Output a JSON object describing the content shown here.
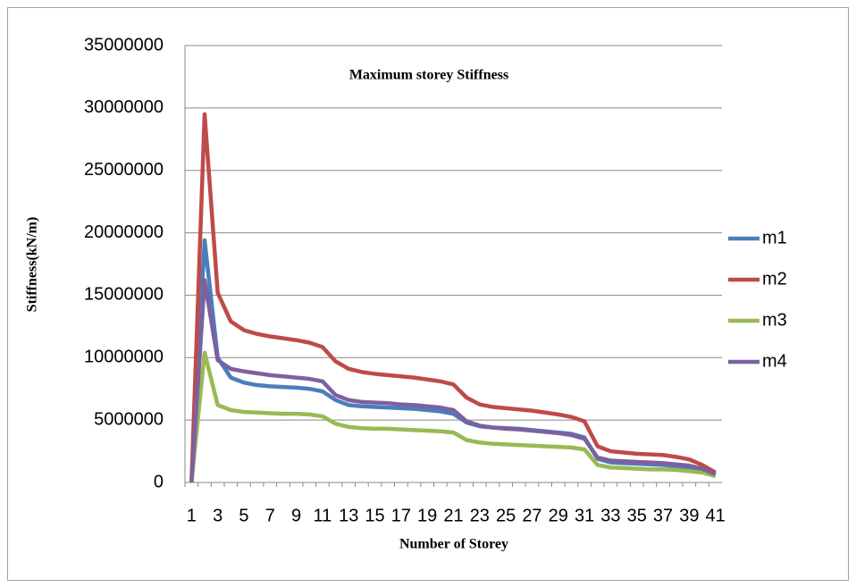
{
  "chart_data": {
    "type": "line",
    "title": "Maximum storey Stiffness",
    "x_label": "Number of Storey",
    "y_label": "Stiffness(kN/m)",
    "categories": [
      1,
      null,
      3,
      null,
      5,
      null,
      7,
      null,
      9,
      null,
      11,
      null,
      13,
      null,
      15,
      null,
      17,
      null,
      19,
      null,
      21,
      null,
      23,
      null,
      25,
      null,
      27,
      null,
      29,
      null,
      31,
      null,
      33,
      null,
      35,
      null,
      37,
      null,
      39,
      null,
      41
    ],
    "series": [
      {
        "name": "m1",
        "color": "#4a7ebb",
        "values": [
          0,
          19400000,
          10000000,
          8400000,
          8000000,
          7800000,
          7700000,
          7650000,
          7600000,
          7500000,
          7300000,
          6600000,
          6200000,
          6100000,
          6050000,
          6000000,
          5950000,
          5900000,
          5800000,
          5700000,
          5500000,
          4800000,
          4500000,
          4400000,
          4350000,
          4300000,
          4200000,
          4100000,
          4000000,
          3900000,
          3600000,
          1900000,
          1600000,
          1550000,
          1500000,
          1450000,
          1400000,
          1300000,
          1200000,
          1000000,
          600000
        ]
      },
      {
        "name": "m2",
        "color": "#be4b48",
        "values": [
          0,
          29500000,
          15200000,
          12900000,
          12200000,
          11900000,
          11700000,
          11550000,
          11400000,
          11200000,
          10850000,
          9700000,
          9100000,
          8850000,
          8700000,
          8600000,
          8500000,
          8400000,
          8250000,
          8100000,
          7850000,
          6800000,
          6250000,
          6050000,
          5950000,
          5850000,
          5750000,
          5600000,
          5450000,
          5250000,
          4900000,
          2900000,
          2500000,
          2400000,
          2300000,
          2250000,
          2200000,
          2050000,
          1850000,
          1400000,
          800000
        ]
      },
      {
        "name": "m3",
        "color": "#98b954",
        "values": [
          0,
          10400000,
          6200000,
          5800000,
          5650000,
          5600000,
          5550000,
          5500000,
          5500000,
          5450000,
          5300000,
          4700000,
          4450000,
          4350000,
          4300000,
          4300000,
          4250000,
          4200000,
          4150000,
          4100000,
          4000000,
          3400000,
          3200000,
          3100000,
          3050000,
          3000000,
          2950000,
          2900000,
          2850000,
          2800000,
          2650000,
          1400000,
          1200000,
          1150000,
          1100000,
          1050000,
          1050000,
          1000000,
          900000,
          800000,
          500000
        ]
      },
      {
        "name": "m4",
        "color": "#7d60a0",
        "values": [
          0,
          16200000,
          9800000,
          9100000,
          8900000,
          8750000,
          8600000,
          8500000,
          8400000,
          8300000,
          8100000,
          7000000,
          6600000,
          6450000,
          6400000,
          6350000,
          6250000,
          6200000,
          6100000,
          6000000,
          5800000,
          4900000,
          4550000,
          4400000,
          4300000,
          4250000,
          4150000,
          4050000,
          3950000,
          3800000,
          3500000,
          2000000,
          1750000,
          1700000,
          1650000,
          1600000,
          1550000,
          1450000,
          1350000,
          1100000,
          650000
        ]
      }
    ],
    "ylim": [
      0,
      35000000
    ],
    "yticks": [
      0,
      5000000,
      10000000,
      15000000,
      20000000,
      25000000,
      30000000,
      35000000
    ],
    "grid": true,
    "legend": "right"
  }
}
